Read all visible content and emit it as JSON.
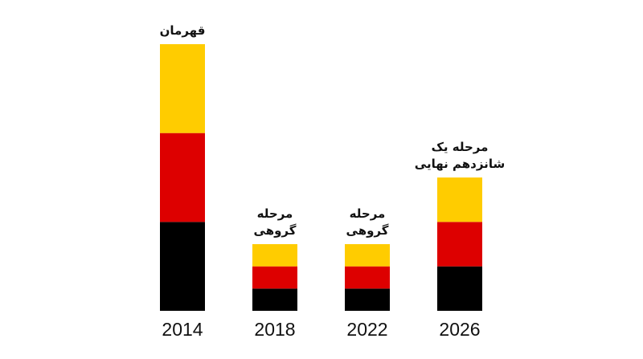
{
  "chart_data": {
    "type": "stacked-bar",
    "categories": [
      "2014",
      "2018",
      "2022",
      "2026"
    ],
    "series": [
      {
        "color": "#000000",
        "values": [
          4,
          1,
          1,
          2
        ]
      },
      {
        "color": "#dd0000",
        "values": [
          4,
          1,
          1,
          2
        ]
      },
      {
        "color": "#ffcc00",
        "values": [
          4,
          1,
          1,
          2
        ]
      }
    ],
    "ylim": [
      0,
      12
    ],
    "annotations": [
      [
        "قهرمان"
      ],
      [
        "مرحله",
        "گروهی"
      ],
      [
        "مرحله",
        "گروهی"
      ],
      [
        "مرحله یک",
        "شانزدهم نهایی"
      ]
    ]
  }
}
